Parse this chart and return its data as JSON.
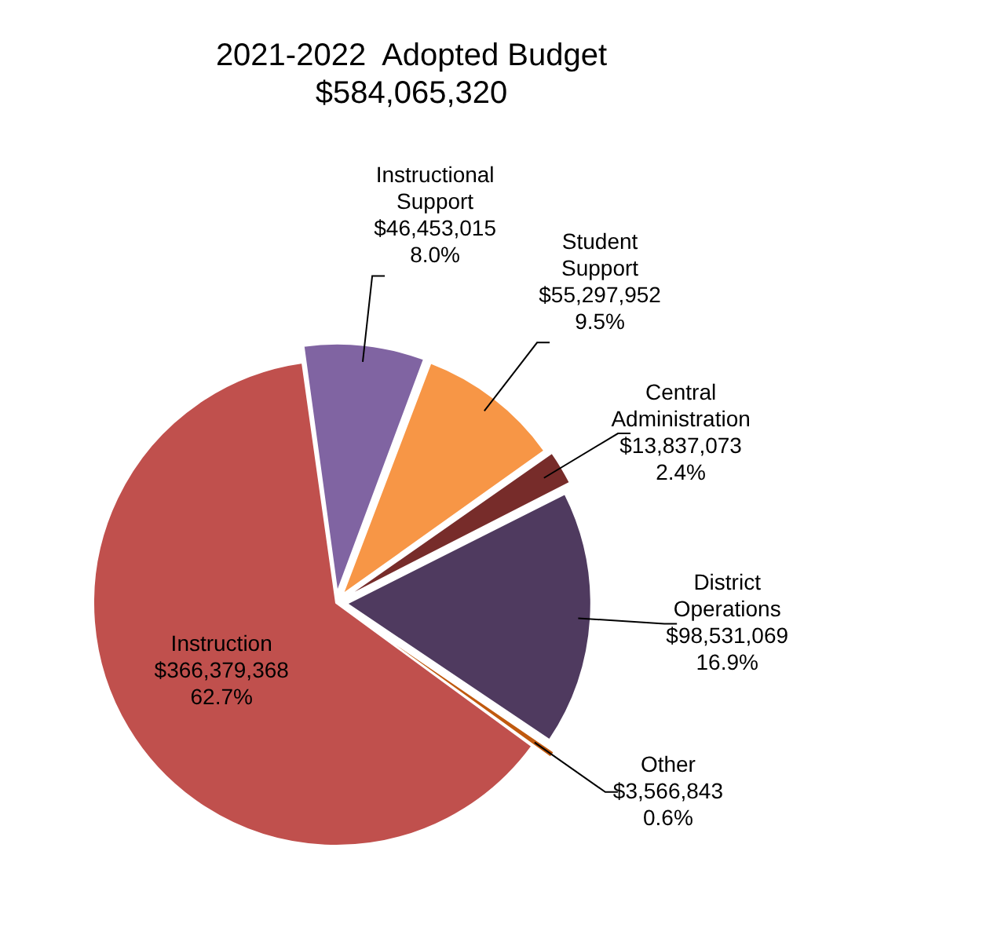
{
  "chart_data": {
    "type": "pie",
    "title": "2021-2022  Adopted Budget",
    "subtitle": "$584,065,320",
    "categories": [
      "Instructional Support",
      "Student Support",
      "Central Administration",
      "District Operations",
      "Other",
      "Instruction"
    ],
    "values": [
      46453015,
      55297952,
      13837073,
      98531069,
      3566843,
      366379368
    ],
    "colors": [
      "#8064a2",
      "#f79646",
      "#772c2a",
      "#4f3a5f",
      "#c0590e",
      "#c0504d"
    ],
    "value_labels": [
      "$46,453,015\n8.0%",
      "$55,297,952\n9.5%",
      "$13,837,073\n2.4%",
      "$98,531,069\n16.9%",
      "$3,566,843\n0.6%",
      "$366,379,368\n62.7%"
    ],
    "legend": false
  }
}
